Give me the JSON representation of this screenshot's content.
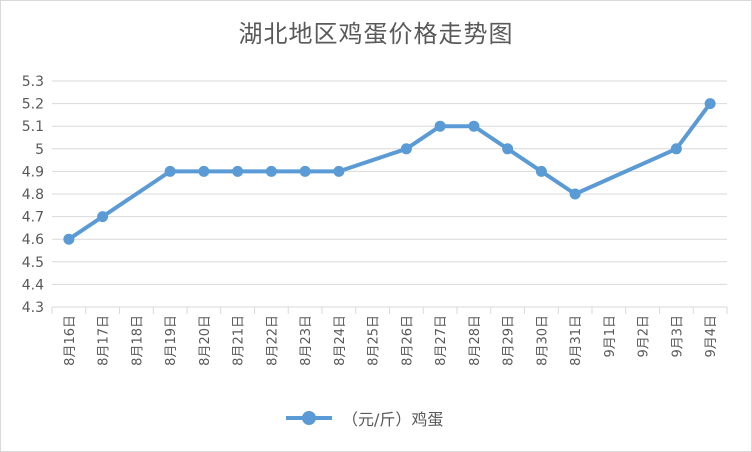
{
  "chart_data": {
    "type": "line",
    "title": "湖北地区鸡蛋价格走势图",
    "categories": [
      "8月16日",
      "8月17日",
      "8月18日",
      "8月19日",
      "8月20日",
      "8月21日",
      "8月22日",
      "8月23日",
      "8月24日",
      "8月25日",
      "8月26日",
      "8月27日",
      "8月28日",
      "8月29日",
      "8月30日",
      "8月31日",
      "9月1日",
      "9月2日",
      "9月3日",
      "9月4日"
    ],
    "series": [
      {
        "name": "（元/斤）鸡蛋",
        "color": "#5b9bd5",
        "values": [
          4.6,
          4.7,
          null,
          4.9,
          4.9,
          4.9,
          4.9,
          4.9,
          4.9,
          null,
          5.0,
          5.1,
          5.1,
          5.0,
          4.9,
          4.8,
          null,
          null,
          5.0,
          5.2
        ]
      }
    ],
    "ylim": [
      4.3,
      5.3
    ],
    "yticks": [
      "4.3",
      "4.4",
      "4.5",
      "4.6",
      "4.7",
      "4.8",
      "4.9",
      "5",
      "5.1",
      "5.2",
      "5.3"
    ],
    "grid": true,
    "legend_position": "bottom"
  }
}
